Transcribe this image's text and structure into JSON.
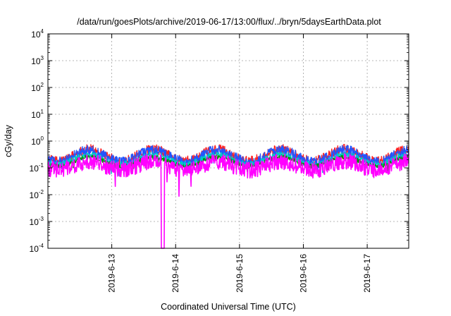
{
  "chart_data": {
    "type": "line",
    "title": "/data/run/goesPlots/archive/2019-06-17/13:00/flux/../bryn/5daysEarthData.plot",
    "xlabel": "Coordinated Universal Time (UTC)",
    "ylabel": "cGy/day",
    "y_scale": "log",
    "ylim": [
      0.0001,
      10000
    ],
    "y_ticks": [
      {
        "base": "10",
        "exp": "4",
        "value": 10000
      },
      {
        "base": "10",
        "exp": "3",
        "value": 1000
      },
      {
        "base": "10",
        "exp": "2",
        "value": 100
      },
      {
        "base": "10",
        "exp": "1",
        "value": 10
      },
      {
        "base": "10",
        "exp": "0",
        "value": 1
      },
      {
        "base": "10",
        "exp": "-1",
        "value": 0.1
      },
      {
        "base": "10",
        "exp": "-2",
        "value": 0.01
      },
      {
        "base": "10",
        "exp": "-3",
        "value": 0.001
      },
      {
        "base": "10",
        "exp": "-4",
        "value": 0.0001
      }
    ],
    "xlim_days": [
      0,
      5.65
    ],
    "x_ticks": [
      {
        "label": "2019-6-13",
        "day": 1.0
      },
      {
        "label": "2019-6-14",
        "day": 2.0
      },
      {
        "label": "2019-6-15",
        "day": 3.0
      },
      {
        "label": "2019-6-16",
        "day": 4.0
      },
      {
        "label": "2019-6-17",
        "day": 5.0
      }
    ],
    "grid": true,
    "series": [
      {
        "color": "#ff2020",
        "base_level": 0.3,
        "amplitude": 0.55,
        "noise": 0.18
      },
      {
        "color": "#2255ff",
        "base_level": 0.27,
        "amplitude": 0.55,
        "noise": 0.2
      },
      {
        "color": "#00c8c8",
        "base_level": 0.2,
        "amplitude": 0.45,
        "noise": 0.12
      },
      {
        "color": "#009000",
        "base_level": 0.17,
        "amplitude": 0.42,
        "noise": 0.08
      },
      {
        "color": "#ff00ff",
        "base_level": 0.12,
        "amplitude": 0.4,
        "noise": 0.3,
        "dropout_day": 1.8
      }
    ]
  }
}
